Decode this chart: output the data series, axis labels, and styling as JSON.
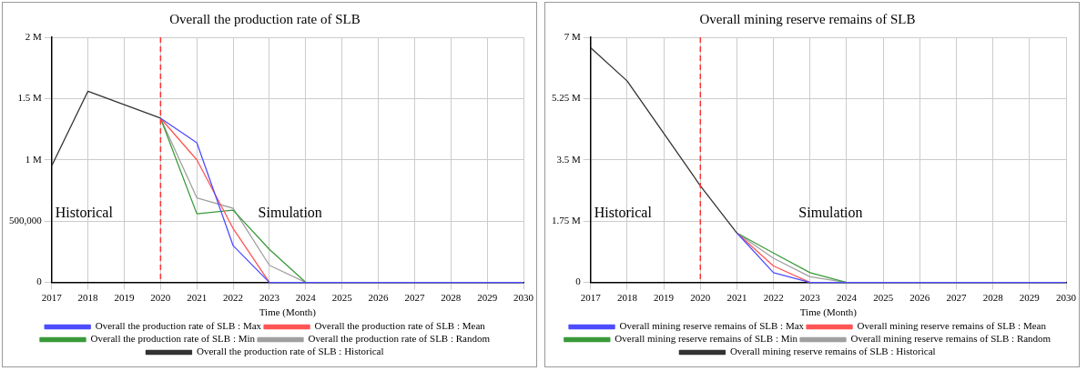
{
  "chart_data": [
    {
      "type": "line",
      "title": "Overall the production rate of SLB",
      "xlabel": "Time (Month)",
      "x": [
        2017,
        2018,
        2019,
        2020,
        2021,
        2022,
        2023,
        2024,
        2025,
        2026,
        2027,
        2028,
        2029,
        2030
      ],
      "xlim": [
        2017,
        2030
      ],
      "xticks": [
        2017,
        2018,
        2019,
        2020,
        2021,
        2022,
        2023,
        2024,
        2025,
        2026,
        2027,
        2028,
        2029,
        2030
      ],
      "ylim": [
        0,
        2000000
      ],
      "yticks": [
        {
          "value": 0,
          "label": "0"
        },
        {
          "value": 500000,
          "label": "500,000"
        },
        {
          "value": 1000000,
          "label": "1 M"
        },
        {
          "value": 1500000,
          "label": "1.5 M"
        },
        {
          "value": 2000000,
          "label": "2 M"
        }
      ],
      "series": [
        {
          "name": "Overall the production rate of SLB : Max",
          "color": "#4d4dff",
          "values": [
            null,
            null,
            null,
            1340000,
            1140000,
            300000,
            0,
            0,
            0,
            0,
            0,
            0,
            0,
            0
          ]
        },
        {
          "name": "Overall the production rate of SLB : Mean",
          "color": "#ff5555",
          "values": [
            null,
            null,
            null,
            1340000,
            1000000,
            440000,
            0,
            null,
            null,
            null,
            null,
            null,
            null,
            null
          ]
        },
        {
          "name": "Overall the production rate of SLB : Min",
          "color": "#3a9a3a",
          "values": [
            null,
            null,
            null,
            1340000,
            560000,
            590000,
            270000,
            0,
            null,
            null,
            null,
            null,
            null,
            null
          ]
        },
        {
          "name": "Overall the production rate of SLB : Random",
          "color": "#a0a0a0",
          "values": [
            null,
            null,
            null,
            1340000,
            690000,
            605000,
            140000,
            0,
            null,
            null,
            null,
            null,
            null,
            null
          ]
        },
        {
          "name": "Overall the production rate of SLB : Historical",
          "color": "#333333",
          "values": [
            950000,
            1560000,
            null,
            1340000,
            null,
            null,
            null,
            null,
            null,
            null,
            null,
            null,
            null,
            null
          ]
        }
      ],
      "ref_lines": [
        {
          "axis": "x",
          "value": 2020,
          "color": "#ff3333",
          "line_style": "dashed"
        }
      ],
      "annotations": [
        "Historical",
        "Simulation"
      ],
      "grid": true,
      "legend": "bottom",
      "marker": "none",
      "line_style": "solid"
    },
    {
      "type": "line",
      "title": "Overall mining reserve remains of SLB",
      "xlabel": "Time (Month)",
      "x": [
        2017,
        2018,
        2019,
        2020,
        2021,
        2022,
        2023,
        2024,
        2025,
        2026,
        2027,
        2028,
        2029,
        2030
      ],
      "xlim": [
        2017,
        2030
      ],
      "xticks": [
        2017,
        2018,
        2019,
        2020,
        2021,
        2022,
        2023,
        2024,
        2025,
        2026,
        2027,
        2028,
        2029,
        2030
      ],
      "ylim": [
        0,
        7000000
      ],
      "yticks": [
        {
          "value": 0,
          "label": "0"
        },
        {
          "value": 1750000,
          "label": "1.75 M"
        },
        {
          "value": 3500000,
          "label": "3.5 M"
        },
        {
          "value": 5250000,
          "label": "5.25 M"
        },
        {
          "value": 7000000,
          "label": "7 M"
        }
      ],
      "series": [
        {
          "name": "Overall mining reserve remains of SLB : Max",
          "color": "#4d4dff",
          "values": [
            null,
            null,
            null,
            null,
            1410000,
            280000,
            0,
            0,
            0,
            0,
            0,
            0,
            0,
            0
          ]
        },
        {
          "name": "Overall mining reserve remains of SLB : Mean",
          "color": "#ff5555",
          "values": [
            null,
            null,
            null,
            null,
            1410000,
            470000,
            0,
            null,
            null,
            null,
            null,
            null,
            null,
            null
          ]
        },
        {
          "name": "Overall mining reserve remains of SLB : Min",
          "color": "#3a9a3a",
          "values": [
            null,
            null,
            null,
            null,
            1410000,
            840000,
            280000,
            0,
            null,
            null,
            null,
            null,
            null,
            null
          ]
        },
        {
          "name": "Overall mining reserve remains of SLB : Random",
          "color": "#a0a0a0",
          "values": [
            null,
            null,
            null,
            null,
            1410000,
            690000,
            160000,
            0,
            null,
            null,
            null,
            null,
            null,
            null
          ]
        },
        {
          "name": "Overall mining reserve remains of SLB : Historical",
          "color": "#333333",
          "values": [
            6700000,
            5750000,
            4260000,
            2760000,
            1410000,
            null,
            null,
            null,
            null,
            null,
            null,
            null,
            null,
            null
          ]
        }
      ],
      "ref_lines": [
        {
          "axis": "x",
          "value": 2020,
          "color": "#ff3333",
          "line_style": "dashed"
        }
      ],
      "annotations": [
        "Historical",
        "Simulation"
      ],
      "grid": true,
      "legend": "bottom",
      "marker": "none",
      "line_style": "solid"
    }
  ]
}
